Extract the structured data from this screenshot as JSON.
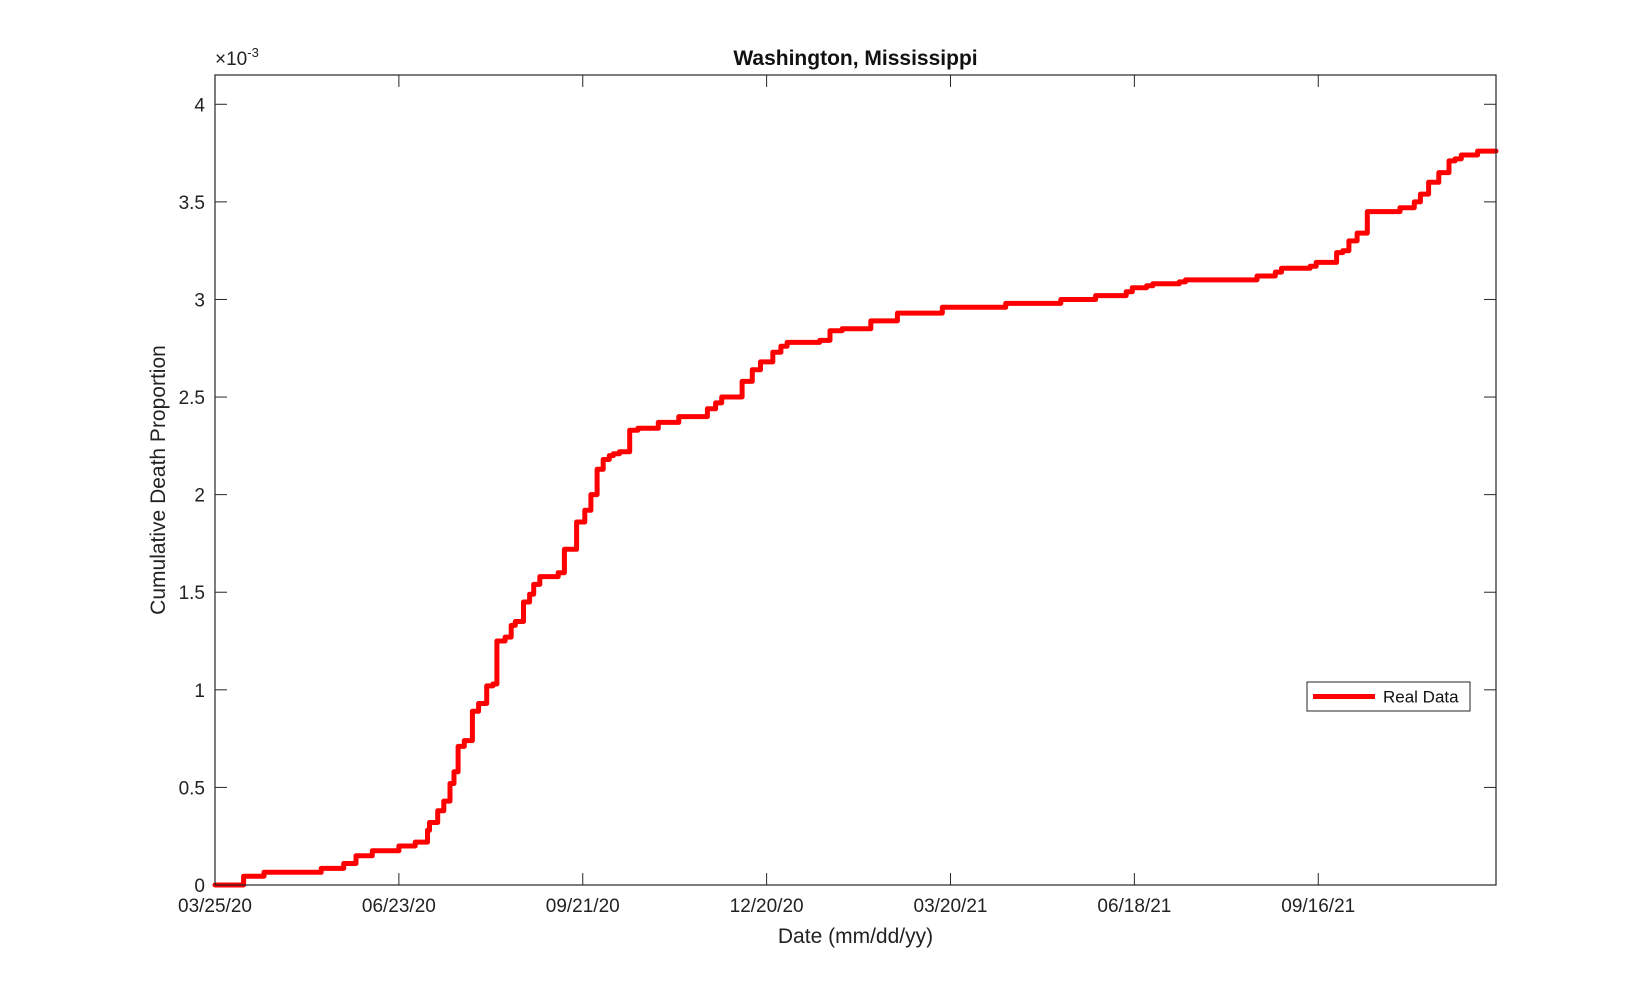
{
  "chart_data": {
    "type": "line",
    "title": "Washington, Mississippi",
    "xlabel": "Date (mm/dd/yy)",
    "ylabel": "Cumulative Death Proportion",
    "y_multiplier_label": "×10",
    "y_multiplier_exponent": "-3",
    "x_ticks": [
      "03/25/20",
      "06/23/20",
      "09/21/20",
      "12/20/20",
      "03/20/21",
      "06/18/21",
      "09/16/21"
    ],
    "x_tick_dates": [
      "2020-03-25",
      "2020-06-23",
      "2020-09-21",
      "2020-12-20",
      "2021-03-20",
      "2021-06-18",
      "2021-09-16"
    ],
    "y_ticks": [
      "0",
      "0.5",
      "1",
      "1.5",
      "2",
      "2.5",
      "3",
      "3.5",
      "4"
    ],
    "y_tick_values": [
      0,
      0.5,
      1,
      1.5,
      2,
      2.5,
      3,
      3.5,
      4
    ],
    "xlim": [
      "2020-03-25",
      "2021-12-12"
    ],
    "ylim": [
      0,
      4.15
    ],
    "grid": false,
    "legend_position": "right",
    "series": [
      {
        "name": "Real Data",
        "color": "#ff0000",
        "x": [
          "2020-03-25",
          "2020-04-07",
          "2020-04-08",
          "2020-04-17",
          "2020-04-18",
          "2020-05-15",
          "2020-05-16",
          "2020-05-26",
          "2020-05-27",
          "2020-06-02",
          "2020-06-05",
          "2020-06-10",
          "2020-06-23",
          "2020-06-30",
          "2020-07-01",
          "2020-07-07",
          "2020-07-08",
          "2020-07-12",
          "2020-07-15",
          "2020-07-18",
          "2020-07-20",
          "2020-07-22",
          "2020-07-25",
          "2020-07-29",
          "2020-08-01",
          "2020-08-05",
          "2020-08-08",
          "2020-08-10",
          "2020-08-14",
          "2020-08-17",
          "2020-08-19",
          "2020-08-23",
          "2020-08-26",
          "2020-08-28",
          "2020-08-31",
          "2020-09-03",
          "2020-09-06",
          "2020-09-09",
          "2020-09-12",
          "2020-09-18",
          "2020-09-22",
          "2020-09-25",
          "2020-09-28",
          "2020-10-01",
          "2020-10-04",
          "2020-10-06",
          "2020-10-09",
          "2020-10-12",
          "2020-10-14",
          "2020-10-18",
          "2020-10-26",
          "2020-10-28",
          "2020-11-04",
          "2020-11-07",
          "2020-11-19",
          "2020-11-21",
          "2020-11-25",
          "2020-11-28",
          "2020-12-08",
          "2020-12-13",
          "2020-12-17",
          "2020-12-23",
          "2020-12-27",
          "2020-12-30",
          "2021-01-05",
          "2021-01-09",
          "2021-01-15",
          "2021-01-20",
          "2021-01-26",
          "2021-02-09",
          "2021-02-13",
          "2021-02-22",
          "2021-02-26",
          "2021-03-12",
          "2021-03-16",
          "2021-04-13",
          "2021-04-16",
          "2021-05-10",
          "2021-05-13",
          "2021-05-27",
          "2021-05-30",
          "2021-06-14",
          "2021-06-17",
          "2021-06-24",
          "2021-06-27",
          "2021-07-10",
          "2021-07-13",
          "2021-08-14",
          "2021-08-17",
          "2021-08-26",
          "2021-08-29",
          "2021-09-12",
          "2021-09-15",
          "2021-09-25",
          "2021-09-28",
          "2021-10-01",
          "2021-10-05",
          "2021-10-10",
          "2021-10-23",
          "2021-10-26",
          "2021-11-02",
          "2021-11-05",
          "2021-11-09",
          "2021-11-14",
          "2021-11-19",
          "2021-11-22",
          "2021-11-25",
          "2021-11-29",
          "2021-12-03",
          "2021-12-12"
        ],
        "y": [
          0,
          0,
          0.045,
          0.045,
          0.065,
          0.065,
          0.085,
          0.085,
          0.11,
          0.15,
          0.15,
          0.175,
          0.2,
          0.2,
          0.22,
          0.28,
          0.32,
          0.38,
          0.43,
          0.52,
          0.58,
          0.71,
          0.74,
          0.89,
          0.93,
          1.02,
          1.03,
          1.25,
          1.27,
          1.33,
          1.35,
          1.45,
          1.49,
          1.54,
          1.58,
          1.58,
          1.58,
          1.6,
          1.72,
          1.86,
          1.92,
          2.0,
          2.13,
          2.18,
          2.2,
          2.21,
          2.22,
          2.22,
          2.33,
          2.34,
          2.34,
          2.37,
          2.37,
          2.4,
          2.4,
          2.44,
          2.47,
          2.5,
          2.58,
          2.64,
          2.68,
          2.73,
          2.76,
          2.78,
          2.78,
          2.78,
          2.79,
          2.84,
          2.85,
          2.89,
          2.89,
          2.93,
          2.93,
          2.93,
          2.96,
          2.96,
          2.98,
          2.98,
          3.0,
          3.0,
          3.02,
          3.04,
          3.06,
          3.07,
          3.08,
          3.09,
          3.1,
          3.1,
          3.12,
          3.14,
          3.16,
          3.17,
          3.19,
          3.24,
          3.25,
          3.3,
          3.34,
          3.45,
          3.45,
          3.47,
          3.5,
          3.54,
          3.6,
          3.65,
          3.71,
          3.72,
          3.74,
          3.74,
          3.76,
          3.76
        ]
      }
    ]
  }
}
